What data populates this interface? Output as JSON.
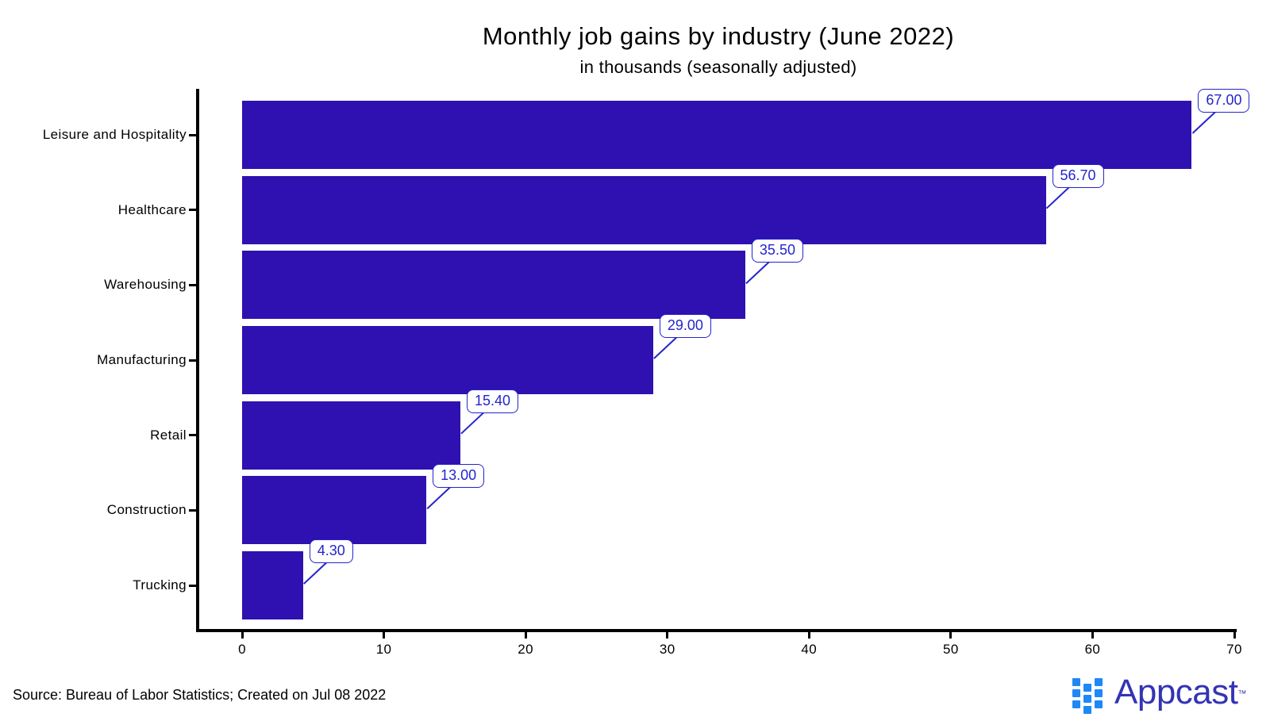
{
  "title": "Monthly job gains by industry (June 2022)",
  "subtitle": "in thousands (seasonally adjusted)",
  "chart_data": {
    "type": "bar",
    "orientation": "horizontal",
    "title": "Monthly job gains by industry (June 2022)",
    "subtitle": "in thousands (seasonally adjusted)",
    "categories": [
      "Leisure and Hospitality",
      "Healthcare",
      "Warehousing",
      "Manufacturing",
      "Retail",
      "Construction",
      "Trucking"
    ],
    "values": [
      67.0,
      56.7,
      35.5,
      29.0,
      15.4,
      13.0,
      4.3
    ],
    "value_labels": [
      "67.00",
      "56.70",
      "35.50",
      "29.00",
      "15.40",
      "13.00",
      "4.30"
    ],
    "x_ticks": [
      "0",
      "10",
      "20",
      "30",
      "40",
      "50",
      "60",
      "70"
    ],
    "x_tick_values": [
      0,
      10,
      20,
      30,
      40,
      50,
      60,
      70
    ],
    "xlim": [
      0,
      70
    ],
    "xlabel": "",
    "ylabel": "",
    "grid": false,
    "legend": false,
    "bar_color": "#2E11B0",
    "callout_color": "#2424CE",
    "axis_color": "#000000"
  },
  "footer": {
    "source": "Source: Bureau of Labor Statistics; Created on Jul 08 2022",
    "brand": "Appcast",
    "trademark": "™"
  }
}
